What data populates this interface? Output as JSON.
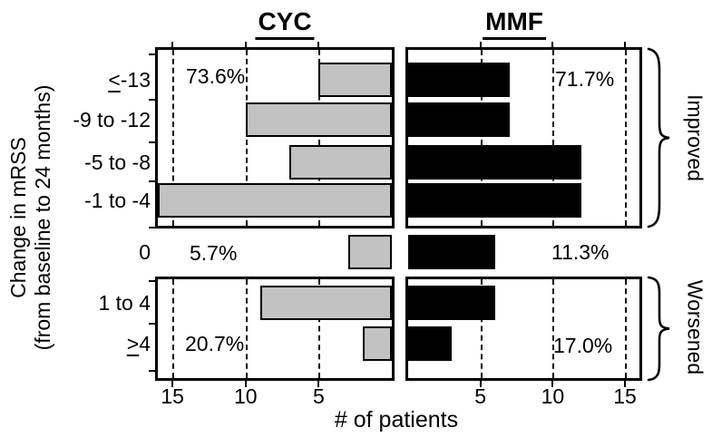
{
  "titles": {
    "left": "CYC",
    "right": "MMF"
  },
  "y_axis": {
    "line1": "Change in mRSS",
    "line2": "(from baseline to 24 months)"
  },
  "x_axis": {
    "label": "# of patients",
    "ticks": [
      5,
      10,
      15
    ],
    "max": 16
  },
  "group_labels": {
    "improved": "Improved",
    "worsened": "Worsened"
  },
  "categories_display": [
    {
      "prefix": "<",
      "text": "-13"
    },
    {
      "prefix": "",
      "text": "-9 to -12"
    },
    {
      "prefix": "",
      "text": "-5 to -8"
    },
    {
      "prefix": "",
      "text": "-1 to -4"
    },
    {
      "prefix": "",
      "text": "0"
    },
    {
      "prefix": "",
      "text": "1 to 4"
    },
    {
      "prefix": ">",
      "text": "4"
    }
  ],
  "chart_data": {
    "type": "bar",
    "orientation": "horizontal-back-to-back",
    "categories": [
      "≤-13",
      "-9 to -12",
      "-5 to -8",
      "-1 to -4",
      "0",
      "1 to 4",
      "≥4"
    ],
    "row_groups": {
      "improved": [
        "≤-13",
        "-9 to -12",
        "-5 to -8",
        "-1 to -4"
      ],
      "zero": [
        "0"
      ],
      "worsened": [
        "1 to 4",
        "≥4"
      ]
    },
    "series": [
      {
        "name": "CYC",
        "side": "left-reversed-axis",
        "color": "#c2c2c2",
        "values": [
          5,
          10,
          7,
          17,
          3,
          9,
          2
        ],
        "percent_labels": {
          "improved": "73.6%",
          "zero": "5.7%",
          "worsened": "20.7%"
        }
      },
      {
        "name": "MMF",
        "side": "right",
        "color": "#000000",
        "values": [
          7,
          7,
          12,
          12,
          6,
          6,
          3
        ],
        "percent_labels": {
          "improved": "71.7%",
          "zero": "11.3%",
          "worsened": "17.0%"
        }
      }
    ],
    "xlabel": "# of patients",
    "ylabel": "Change in mRSS (from baseline to 24 months)",
    "xticks": [
      5,
      10,
      15
    ],
    "xlim": [
      0,
      16
    ],
    "gridlines": "dashed-vertical",
    "notes": "CYC -1 to -4 bar (17) is clipped at the axis limit of 16"
  }
}
